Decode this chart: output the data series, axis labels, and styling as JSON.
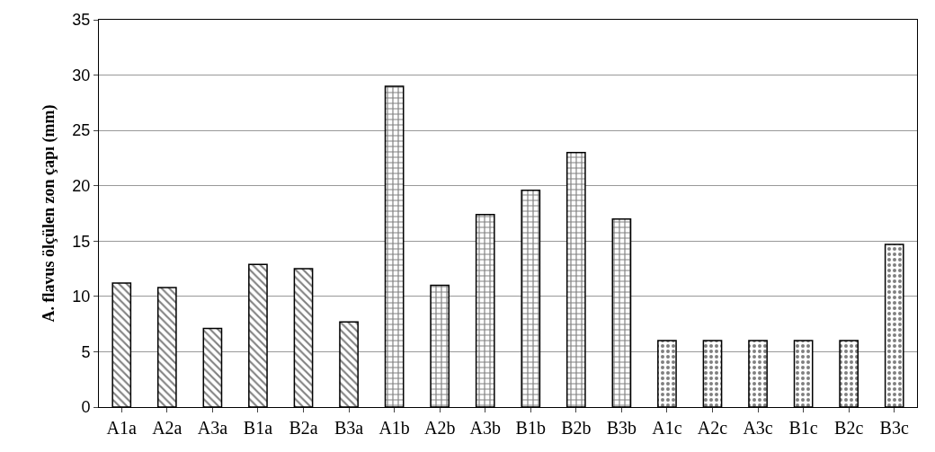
{
  "chart_data": {
    "type": "bar",
    "ylabel": "A. flavus ölçülen zon çapı (mm)",
    "categories": [
      "A1a",
      "A2a",
      "A3a",
      "B1a",
      "B2a",
      "B3a",
      "A1b",
      "A2b",
      "A3b",
      "B1b",
      "B2b",
      "B3b",
      "A1c",
      "A2c",
      "A3c",
      "B1c",
      "B2c",
      "B3c"
    ],
    "series": [
      {
        "color": "#000000",
        "values": [
          11.2,
          10.8,
          7.1,
          12.9,
          12.5,
          7.7,
          null,
          null,
          null,
          null,
          null,
          null,
          null,
          null,
          null,
          null,
          null,
          null
        ]
      },
      {
        "color": "#000000",
        "values": [
          null,
          null,
          null,
          null,
          null,
          null,
          29.0,
          11.0,
          17.4,
          19.6,
          23.0,
          17.0,
          null,
          null,
          null,
          null,
          null,
          null
        ]
      },
      {
        "color": "#000000",
        "values": [
          null,
          null,
          null,
          null,
          null,
          null,
          null,
          null,
          null,
          null,
          null,
          null,
          6.0,
          6.0,
          6.0,
          6.0,
          6.0,
          14.7
        ]
      }
    ],
    "ylim": [
      0,
      35
    ],
    "yticks": [
      0,
      5,
      10,
      15,
      20,
      25,
      30,
      35
    ],
    "grid": "y",
    "legend": false
  }
}
